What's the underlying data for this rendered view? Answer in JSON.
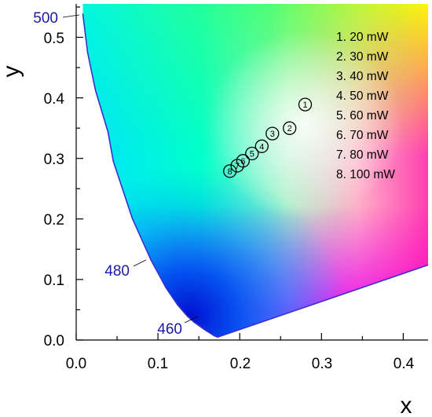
{
  "chart_data": {
    "type": "scatter",
    "title": "",
    "xlabel": "x",
    "ylabel": "y",
    "xlim": [
      0.0,
      0.43
    ],
    "ylim": [
      0.0,
      0.55
    ],
    "x_ticks": [
      "0.0",
      "0.1",
      "0.2",
      "0.3",
      "0.4"
    ],
    "y_ticks": [
      "0.0",
      "0.1",
      "0.2",
      "0.3",
      "0.4",
      "0.5"
    ],
    "grid": false,
    "background": "CIE 1931 chromaticity diagram (gamut region)",
    "spectral_locus_labels": [
      {
        "label": "500",
        "x": 0.008,
        "y": 0.538
      },
      {
        "label": "480",
        "x": 0.091,
        "y": 0.133
      },
      {
        "label": "460",
        "x": 0.144,
        "y": 0.03
      }
    ],
    "points": [
      {
        "label": "1",
        "x": 0.28,
        "y": 0.389
      },
      {
        "label": "2",
        "x": 0.261,
        "y": 0.35
      },
      {
        "label": "3",
        "x": 0.24,
        "y": 0.341
      },
      {
        "label": "4",
        "x": 0.227,
        "y": 0.32
      },
      {
        "label": "5",
        "x": 0.215,
        "y": 0.308
      },
      {
        "label": "6",
        "x": 0.204,
        "y": 0.296
      },
      {
        "label": "7",
        "x": 0.197,
        "y": 0.288
      },
      {
        "label": "8",
        "x": 0.188,
        "y": 0.279
      }
    ],
    "legend": {
      "placement": "top-right",
      "entries": [
        "1. 20 mW",
        "2. 30 mW",
        "3. 40 mW",
        "4. 50 mW",
        "5. 60 mW",
        "6. 70 mW",
        "7. 80 mW",
        "8. 100 mW"
      ]
    },
    "colors": {
      "label_blue": "#1a1aa6",
      "locus_line": "#3a2fcf",
      "marker": "#000000"
    }
  }
}
